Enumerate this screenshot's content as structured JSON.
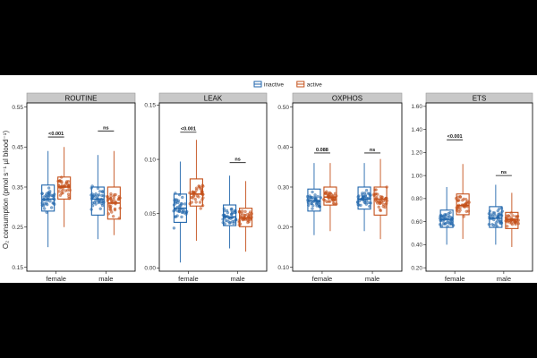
{
  "legend": {
    "items": [
      {
        "label": "inactive",
        "color": "#2166ac"
      },
      {
        "label": "active",
        "color": "#c4501a"
      }
    ],
    "placement": "top-center"
  },
  "ylabel": "O₂ consumption (pmol s⁻¹ µl blood⁻¹)",
  "chart_data": [
    {
      "type": "boxplot",
      "title": "ROUTINE",
      "categories": [
        "female",
        "male"
      ],
      "ylim": [
        0.14,
        0.56
      ],
      "yticks": [
        0.15,
        0.25,
        0.35,
        0.45,
        0.55
      ],
      "ytick_labels": [
        "0.15",
        "0.25",
        "0.35",
        "0.45",
        "0.55"
      ],
      "series": [
        {
          "name": "inactive",
          "boxes": [
            {
              "min": 0.2,
              "q1": 0.29,
              "median": 0.32,
              "q3": 0.355,
              "max": 0.44
            },
            {
              "min": 0.22,
              "q1": 0.28,
              "median": 0.32,
              "q3": 0.35,
              "max": 0.43
            }
          ]
        },
        {
          "name": "active",
          "boxes": [
            {
              "min": 0.25,
              "q1": 0.32,
              "median": 0.35,
              "q3": 0.375,
              "max": 0.45
            },
            {
              "min": 0.23,
              "q1": 0.27,
              "median": 0.31,
              "q3": 0.35,
              "max": 0.44
            }
          ]
        }
      ],
      "annotations": [
        {
          "category": "female",
          "label": "<0.001",
          "y": 0.475
        },
        {
          "category": "male",
          "label": "ns",
          "y": 0.49
        }
      ]
    },
    {
      "type": "boxplot",
      "title": "LEAK",
      "categories": [
        "female",
        "male"
      ],
      "ylim": [
        -0.003,
        0.152
      ],
      "yticks": [
        0.0,
        0.05,
        0.1,
        0.15
      ],
      "ytick_labels": [
        "0.00",
        "0.05",
        "0.10",
        "0.15"
      ],
      "series": [
        {
          "name": "inactive",
          "boxes": [
            {
              "min": 0.005,
              "q1": 0.042,
              "median": 0.055,
              "q3": 0.068,
              "max": 0.098
            },
            {
              "min": 0.018,
              "q1": 0.039,
              "median": 0.047,
              "q3": 0.058,
              "max": 0.085
            }
          ]
        },
        {
          "name": "active",
          "boxes": [
            {
              "min": 0.025,
              "q1": 0.057,
              "median": 0.068,
              "q3": 0.082,
              "max": 0.118
            },
            {
              "min": 0.015,
              "q1": 0.038,
              "median": 0.046,
              "q3": 0.055,
              "max": 0.08
            }
          ]
        }
      ],
      "annotations": [
        {
          "category": "female",
          "label": "<0.001",
          "y": 0.125
        },
        {
          "category": "male",
          "label": "ns",
          "y": 0.097
        }
      ]
    },
    {
      "type": "boxplot",
      "title": "OXPHOS",
      "categories": [
        "female",
        "male"
      ],
      "ylim": [
        0.09,
        0.51
      ],
      "yticks": [
        0.1,
        0.2,
        0.3,
        0.4,
        0.5
      ],
      "ytick_labels": [
        "0.10",
        "0.20",
        "0.30",
        "0.40",
        "0.50"
      ],
      "series": [
        {
          "name": "inactive",
          "boxes": [
            {
              "min": 0.18,
              "q1": 0.24,
              "median": 0.265,
              "q3": 0.295,
              "max": 0.36
            },
            {
              "min": 0.19,
              "q1": 0.245,
              "median": 0.27,
              "q3": 0.3,
              "max": 0.36
            }
          ]
        },
        {
          "name": "active",
          "boxes": [
            {
              "min": 0.19,
              "q1": 0.255,
              "median": 0.275,
              "q3": 0.3,
              "max": 0.36
            },
            {
              "min": 0.17,
              "q1": 0.23,
              "median": 0.27,
              "q3": 0.3,
              "max": 0.37
            }
          ]
        }
      ],
      "annotations": [
        {
          "category": "female",
          "label": "0.088",
          "y": 0.385
        },
        {
          "category": "male",
          "label": "ns",
          "y": 0.385
        }
      ]
    },
    {
      "type": "boxplot",
      "title": "ETS",
      "categories": [
        "female",
        "male"
      ],
      "ylim": [
        0.17,
        1.63
      ],
      "yticks": [
        0.2,
        0.4,
        0.6,
        0.8,
        1.0,
        1.2,
        1.4,
        1.6
      ],
      "ytick_labels": [
        "0.20",
        "0.40",
        "0.60",
        "0.80",
        "1.00",
        "1.20",
        "1.40",
        "1.60"
      ],
      "series": [
        {
          "name": "inactive",
          "boxes": [
            {
              "min": 0.4,
              "q1": 0.55,
              "median": 0.62,
              "q3": 0.7,
              "max": 0.9
            },
            {
              "min": 0.4,
              "q1": 0.55,
              "median": 0.63,
              "q3": 0.73,
              "max": 0.92
            }
          ]
        },
        {
          "name": "active",
          "boxes": [
            {
              "min": 0.45,
              "q1": 0.66,
              "median": 0.74,
              "q3": 0.84,
              "max": 1.1
            },
            {
              "min": 0.38,
              "q1": 0.54,
              "median": 0.62,
              "q3": 0.68,
              "max": 0.85
            }
          ]
        }
      ],
      "annotations": [
        {
          "category": "female",
          "label": "<0.001",
          "y": 1.31
        },
        {
          "category": "male",
          "label": "ns",
          "y": 1.0
        }
      ]
    }
  ]
}
